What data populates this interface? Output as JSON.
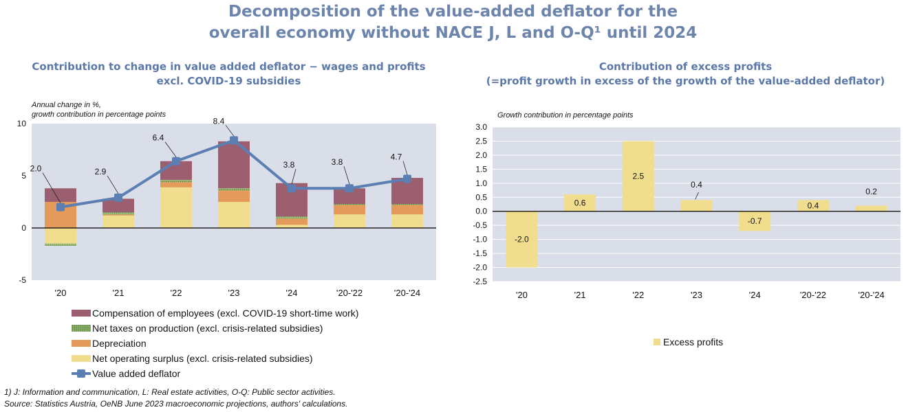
{
  "title_line1": "Decomposition of the value-added deflator for the",
  "title_line2": "overall economy without NACE J, L and O-Q¹ until 2024",
  "left": {
    "title_line1": "Contribution to change in value added deflator − wages and profits",
    "title_line2": "excl. COVID-19 subsidies",
    "axis_note_line1": "Annual change in %,",
    "axis_note_line2": "growth contribution in percentage points"
  },
  "right": {
    "title_line1": "Contribution of excess profits",
    "title_line2": "(=profit growth in excess of the growth of the value-added deflator)",
    "axis_note": "Growth contribution in percentage points"
  },
  "legend_left": [
    {
      "label": "Compensation of employees (excl. COVID-19 short-time work)",
      "color": "#9b5f70"
    },
    {
      "label": "Net taxes on production (excl. crisis-related subsidies)",
      "color": "#6f9a4a"
    },
    {
      "label": "Depreciation",
      "color": "#e39a5b"
    },
    {
      "label": "Net operating surplus (excl. crisis-related subsidies)",
      "color": "#f0de8e"
    },
    {
      "label": "Value added deflator",
      "color": "#5b7fb2"
    }
  ],
  "legend_right": {
    "label": "Excess profits",
    "color": "#f0de8e"
  },
  "footnote_line1": "1) J: Information and communication, L: Real estate activities, O-Q: Public sector activities.",
  "footnote_line2": "Source: Statistics Austria, OeNB June 2023 macroeconomic projections, authors' calculations.",
  "chart_data": [
    {
      "type": "bar",
      "stacked": true,
      "title": "Contribution to change in value added deflator − wages and profits excl. COVID-19 subsidies",
      "categories": [
        "'20",
        "'21",
        "'22",
        "'23",
        "'24",
        "'20-'22",
        "'20-'24"
      ],
      "ylim": [
        -5,
        10
      ],
      "yticks": [
        -5,
        0,
        5,
        10
      ],
      "ylabel": "Annual change in %, growth contribution in percentage points",
      "grid": false,
      "series": [
        {
          "name": "Net operating surplus (excl. crisis-related subsidies)",
          "color": "#f0de8e",
          "values": [
            -1.5,
            1.2,
            3.9,
            2.5,
            0.3,
            1.3,
            1.3
          ]
        },
        {
          "name": "Depreciation",
          "color": "#e39a5b",
          "values": [
            2.5,
            0.1,
            0.5,
            1.1,
            0.6,
            0.9,
            0.9
          ]
        },
        {
          "name": "Net taxes on production (excl. crisis-related subsidies)",
          "color": "#6f9a4a",
          "values": [
            -0.2,
            0.2,
            0.2,
            0.2,
            0.2,
            0.1,
            0.1
          ]
        },
        {
          "name": "Compensation of employees (excl. COVID-19 short-time work)",
          "color": "#9b5f70",
          "values": [
            1.3,
            1.3,
            1.8,
            4.5,
            3.2,
            1.5,
            2.5
          ]
        }
      ],
      "line": {
        "name": "Value added deflator",
        "color": "#5b7fb2",
        "values": [
          2.0,
          2.9,
          6.4,
          8.4,
          3.8,
          3.8,
          4.7
        ]
      },
      "data_labels": [
        "2.0",
        "2.9",
        "6.4",
        "8.4",
        "3.8",
        "3.8",
        "4.7"
      ]
    },
    {
      "type": "bar",
      "title": "Contribution of excess profits (=profit growth in excess of the growth of the value-added deflator)",
      "categories": [
        "'20",
        "'21",
        "'22",
        "'23",
        "'24",
        "'20-'22",
        "'20-'24"
      ],
      "ylim": [
        -2.5,
        3.0
      ],
      "yticks": [
        -2.5,
        -2.0,
        -1.5,
        -1.0,
        -0.5,
        0.0,
        0.5,
        1.0,
        1.5,
        2.0,
        2.5,
        3.0
      ],
      "ylabel": "Growth contribution in percentage points",
      "grid": true,
      "series": [
        {
          "name": "Excess profits",
          "color": "#f0de8e",
          "values": [
            -2.0,
            0.6,
            2.5,
            0.4,
            -0.7,
            0.4,
            0.2
          ]
        }
      ],
      "data_labels": [
        "-2.0",
        "0.6",
        "2.5",
        "0.4",
        "-0.7",
        "0.4",
        "0.2"
      ]
    }
  ]
}
